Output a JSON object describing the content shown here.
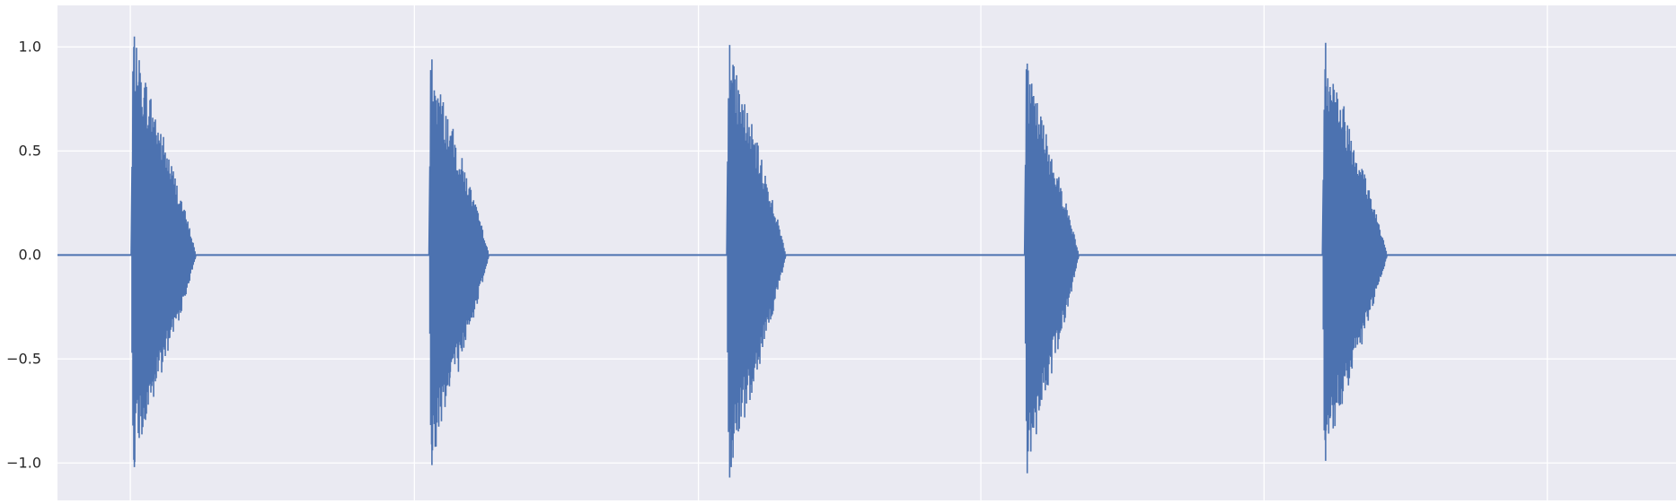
{
  "chart_data": {
    "type": "line",
    "title": "",
    "xlabel": "",
    "ylabel": "",
    "ylim": [
      -1.18,
      1.2
    ],
    "xlim": [
      0,
      1
    ],
    "grid": true,
    "yticks": [
      {
        "value": 1.0,
        "label": "1.0"
      },
      {
        "value": 0.5,
        "label": "0.5"
      },
      {
        "value": 0.0,
        "label": "0.0"
      },
      {
        "value": -0.5,
        "label": "−0.5"
      },
      {
        "value": -1.0,
        "label": "−1.0"
      }
    ],
    "xgrid": [
      0.045,
      0.2205,
      0.396,
      0.5705,
      0.7455,
      0.9205
    ],
    "bursts": [
      {
        "start": 0.0455,
        "end": 0.0855,
        "max": 1.05,
        "min": -1.02
      },
      {
        "start": 0.2295,
        "end": 0.2665,
        "max": 0.94,
        "min": -1.01
      },
      {
        "start": 0.4135,
        "end": 0.45,
        "max": 1.01,
        "min": -1.07
      },
      {
        "start": 0.5975,
        "end": 0.631,
        "max": 0.92,
        "min": -1.05
      },
      {
        "start": 0.7815,
        "end": 0.8215,
        "max": 1.02,
        "min": -0.99
      }
    ],
    "colors": {
      "line": "#4c72b0",
      "background": "#eaeaf2",
      "grid": "#ffffff",
      "tick_text": "#262626"
    }
  }
}
